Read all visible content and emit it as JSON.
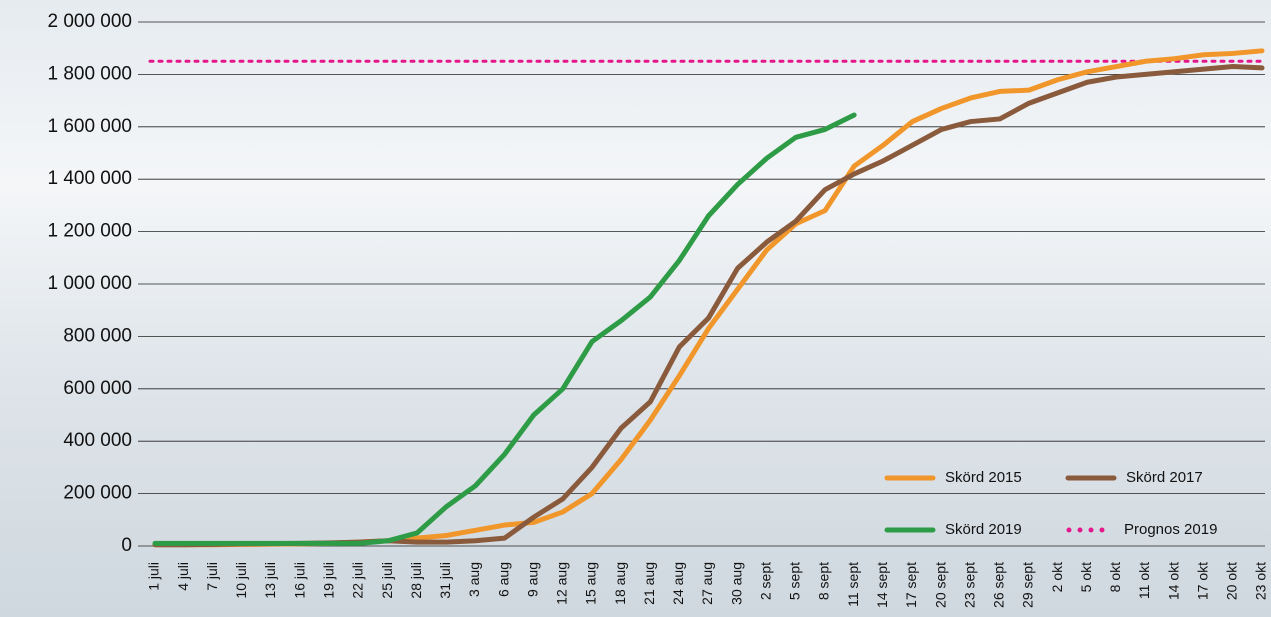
{
  "chart_data": {
    "type": "line",
    "categories": [
      "1 juli",
      "4 juli",
      "7 juli",
      "10 juli",
      "13 juli",
      "16 juli",
      "19 juli",
      "22 juli",
      "25 juli",
      "28 juli",
      "31 juli",
      "3 aug",
      "6 aug",
      "9 aug",
      "12 aug",
      "15 aug",
      "18 aug",
      "21 aug",
      "24 aug",
      "27 aug",
      "30 aug",
      "2 sept",
      "5 sept",
      "8 sept",
      "11 sept",
      "14 sept",
      "17 sept",
      "20 sept",
      "23 sept",
      "26 sept",
      "29 sept",
      "2 okt",
      "5 okt",
      "8 okt",
      "11 okt",
      "14 okt",
      "17 okt",
      "20 okt",
      "23 okt"
    ],
    "series": [
      {
        "name": "Skörd 2015",
        "color": "#f0962a",
        "values": [
          5000,
          5000,
          5000,
          6000,
          7000,
          8000,
          10000,
          15000,
          20000,
          30000,
          40000,
          60000,
          80000,
          90000,
          130000,
          200000,
          330000,
          480000,
          650000,
          830000,
          980000,
          1130000,
          1230000,
          1280000,
          1450000,
          1530000,
          1620000,
          1670000,
          1710000,
          1735000,
          1740000,
          1780000,
          1810000,
          1830000,
          1850000,
          1860000,
          1875000,
          1880000,
          1890000
        ]
      },
      {
        "name": "Skörd 2017",
        "color": "#8a5a3c",
        "values": [
          5000,
          5000,
          6000,
          8000,
          9000,
          10000,
          12000,
          15000,
          20000,
          15000,
          15000,
          20000,
          30000,
          110000,
          180000,
          300000,
          450000,
          550000,
          760000,
          870000,
          1060000,
          1160000,
          1240000,
          1360000,
          1420000,
          1470000,
          1530000,
          1590000,
          1620000,
          1630000,
          1690000,
          1730000,
          1770000,
          1790000,
          1800000,
          1810000,
          1820000,
          1830000,
          1825000
        ]
      },
      {
        "name": "Skörd 2019",
        "color": "#2e9c46",
        "values": [
          10000,
          10000,
          10000,
          10000,
          10000,
          10000,
          10000,
          10000,
          20000,
          50000,
          150000,
          230000,
          350000,
          500000,
          600000,
          780000,
          860000,
          950000,
          1090000,
          1260000,
          1380000,
          1480000,
          1560000,
          1590000,
          1645000,
          null,
          null,
          null,
          null,
          null,
          null,
          null,
          null,
          null,
          null,
          null,
          null,
          null,
          null
        ]
      }
    ],
    "prognos": {
      "name": "Prognos 2019",
      "color": "#e5168c",
      "value": 1850000
    },
    "ylim": [
      0,
      2000000
    ],
    "yticks": [
      0,
      {
        "value": 200000,
        "label": "200 000"
      },
      {
        "value": 400000,
        "label": "400 000"
      },
      {
        "value": 600000,
        "label": "600 000"
      },
      {
        "value": 800000,
        "label": "800 000"
      },
      {
        "value": 1000000,
        "label": "1 000 000"
      },
      {
        "value": 1200000,
        "label": "1 200 000"
      },
      {
        "value": 1400000,
        "label": "1 400 000"
      },
      {
        "value": 1600000,
        "label": "1 600 000"
      },
      {
        "value": 1800000,
        "label": "1 800 000"
      },
      {
        "value": 2000000,
        "label": "2 000 000"
      }
    ],
    "grid": true
  }
}
